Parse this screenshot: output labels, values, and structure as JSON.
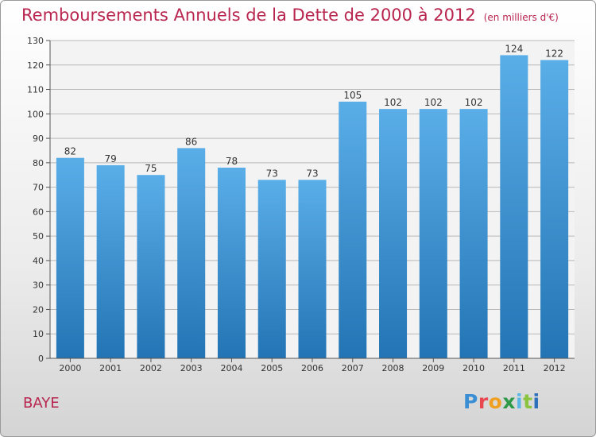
{
  "title": "Remboursements Annuels de la Dette de 2000 à 2012",
  "unit": "(en milliers d'€)",
  "commune": "BAYE",
  "brand": "Proxiti",
  "colors": {
    "bar_top": "#5aaee8",
    "bar_bottom": "#2374b4",
    "title": "#b8254f"
  },
  "chart_data": {
    "type": "bar",
    "categories": [
      "2000",
      "2001",
      "2002",
      "2003",
      "2004",
      "2005",
      "2006",
      "2007",
      "2008",
      "2009",
      "2010",
      "2011",
      "2012"
    ],
    "values": [
      82,
      79,
      75,
      86,
      78,
      73,
      73,
      105,
      102,
      102,
      102,
      124,
      122
    ],
    "ylim": [
      0,
      130
    ],
    "yticks": [
      0,
      10,
      20,
      30,
      40,
      50,
      60,
      70,
      80,
      90,
      100,
      110,
      120,
      130
    ],
    "grid": true
  }
}
